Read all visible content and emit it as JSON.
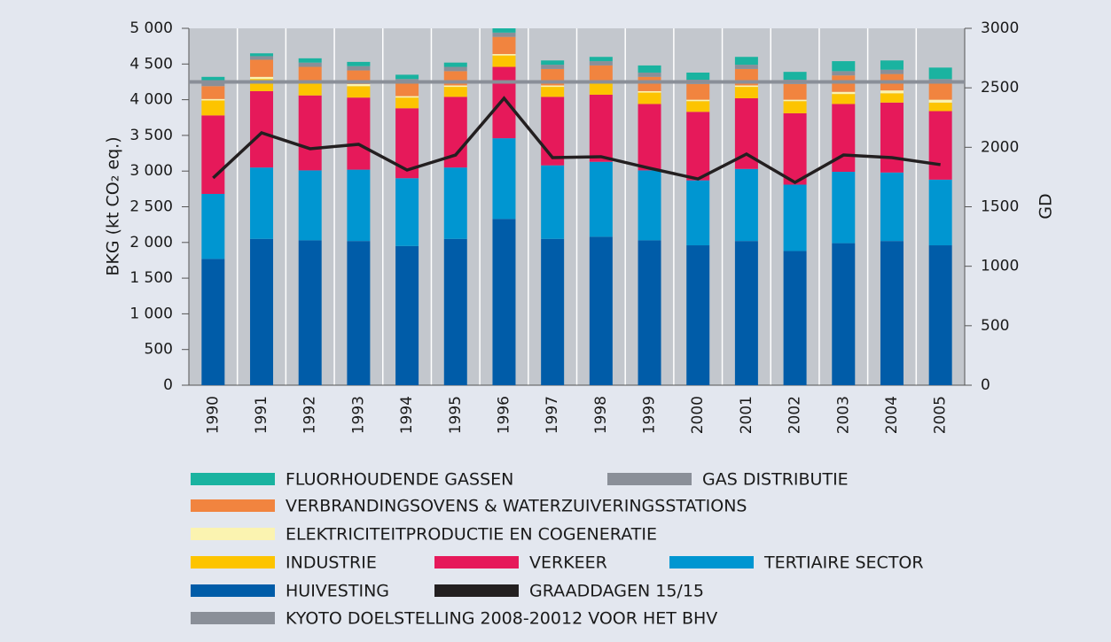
{
  "chart_data": {
    "type": "bar",
    "stacked": true,
    "y_label": "BKG (kt CO₂ eq.)",
    "y2_label": "GD",
    "categories": [
      "1990",
      "1991",
      "1992",
      "1993",
      "1994",
      "1995",
      "1996",
      "1997",
      "1998",
      "1999",
      "2000",
      "2001",
      "2002",
      "2003",
      "2004",
      "2005"
    ],
    "ylim": [
      0,
      5000
    ],
    "yticks": [
      0,
      500,
      {
        "value": 1000,
        "label": "1 000"
      },
      {
        "value": 1500,
        "label": "1 500"
      },
      {
        "value": 2000,
        "label": "2 000"
      },
      {
        "value": 2500,
        "label": "2 500"
      },
      {
        "value": 3000,
        "label": "3 000"
      },
      {
        "value": 3500,
        "label": "3 500"
      },
      {
        "value": 4000,
        "label": "4 000"
      },
      {
        "value": 4500,
        "label": "4 500"
      },
      {
        "value": 5000,
        "label": "5 000"
      }
    ],
    "y2lim": [
      0,
      3000
    ],
    "y2ticks": [
      0,
      500,
      1000,
      1500,
      2000,
      2500,
      3000
    ],
    "series": [
      {
        "name": "HUIVESTING",
        "color": "#005ca8",
        "values": [
          1770,
          2050,
          2030,
          2020,
          1950,
          2050,
          2330,
          2050,
          2080,
          2030,
          1960,
          2020,
          1880,
          1990,
          2020,
          1960
        ]
      },
      {
        "name": "TERTIAIRE SECTOR",
        "color": "#0096d1",
        "values": [
          910,
          1000,
          980,
          1000,
          950,
          1000,
          1130,
          1030,
          1050,
          980,
          910,
          1010,
          930,
          1000,
          960,
          920
        ]
      },
      {
        "name": "VERKEER",
        "color": "#e6195a",
        "values": [
          1100,
          1070,
          1050,
          1010,
          980,
          990,
          1000,
          960,
          940,
          930,
          960,
          990,
          1000,
          950,
          980,
          960
        ]
      },
      {
        "name": "INDUSTRIE",
        "color": "#fdc400",
        "values": [
          210,
          170,
          170,
          160,
          150,
          140,
          160,
          140,
          160,
          160,
          150,
          160,
          170,
          140,
          130,
          120
        ]
      },
      {
        "name": "ELEKTRICITEITPRODUCTIE EN COGENERATIE",
        "color": "#fbf3b0",
        "values": [
          20,
          30,
          30,
          30,
          20,
          20,
          20,
          20,
          20,
          20,
          20,
          20,
          20,
          30,
          40,
          40
        ]
      },
      {
        "name": "VERBRANDINGSOVENS & WATERZUIVERINGSSTATIONS",
        "color": "#f1843f",
        "values": [
          180,
          240,
          200,
          190,
          180,
          200,
          240,
          230,
          230,
          200,
          220,
          230,
          220,
          230,
          230,
          230
        ]
      },
      {
        "name": "GAS DISTRIBUTIE",
        "color": "#8a8f98",
        "values": [
          60,
          50,
          60,
          60,
          60,
          60,
          60,
          60,
          60,
          60,
          60,
          60,
          60,
          60,
          60,
          60
        ]
      },
      {
        "name": "FLUORHOUDENDE GASSEN",
        "color": "#1ab3a0",
        "values": [
          70,
          40,
          60,
          60,
          60,
          60,
          60,
          60,
          60,
          100,
          100,
          110,
          110,
          140,
          130,
          160
        ]
      },
      {
        "name": "GRAADDAGEN 15/15",
        "color": "#231f20",
        "type": "line",
        "axis": "y2",
        "values": [
          1742,
          2122,
          1988,
          2025,
          1809,
          1935,
          2412,
          1913,
          1921,
          1824,
          1734,
          1943,
          1705,
          1935,
          1913,
          1854
        ]
      },
      {
        "name": "KYOTO DOELSTELLING 2008-20012 VOOR HET BHV",
        "color": "#8a8f98",
        "type": "hline",
        "value": 4250
      }
    ]
  }
}
